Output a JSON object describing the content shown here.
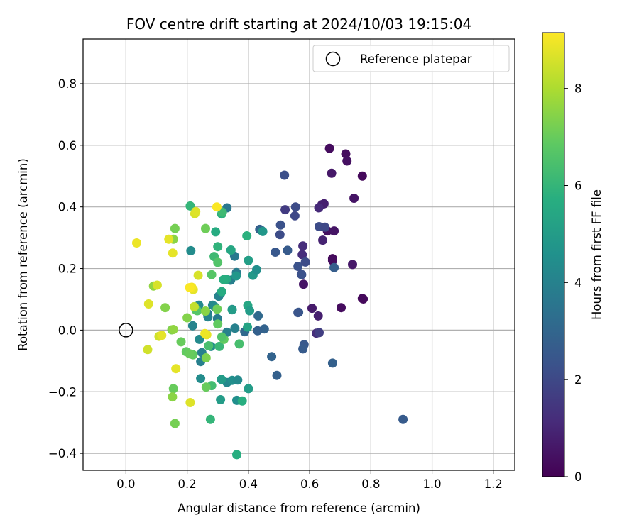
{
  "chart_data": {
    "type": "scatter",
    "title": "FOV centre drift starting at 2024/10/03 19:15:04",
    "xlabel": "Angular distance from reference (arcmin)",
    "ylabel": "Rotation from reference (arcmin)",
    "xlim": [
      -0.14,
      1.27
    ],
    "ylim": [
      -0.455,
      0.945
    ],
    "xticks": [
      0.0,
      0.2,
      0.4,
      0.6,
      0.8,
      1.0,
      1.2
    ],
    "xtick_labels": [
      "0.0",
      "0.2",
      "0.4",
      "0.6",
      "0.8",
      "1.0",
      "1.2"
    ],
    "yticks": [
      -0.4,
      -0.2,
      0.0,
      0.2,
      0.4,
      0.6,
      0.8
    ],
    "ytick_labels": [
      "−0.4",
      "−0.2",
      "0.0",
      "0.2",
      "0.4",
      "0.6",
      "0.8"
    ],
    "grid": true,
    "legend": {
      "position": "top-right",
      "entries": [
        {
          "label": "Reference platepar",
          "marker": "open-circle"
        }
      ]
    },
    "reference_point": {
      "x": 0.0,
      "y": 0.0
    },
    "colorbar": {
      "label": "Hours from first FF file",
      "colormap": "viridis",
      "range": [
        0,
        9.15
      ],
      "ticks": [
        0,
        2,
        4,
        6,
        8
      ],
      "tick_labels": [
        "0",
        "2",
        "4",
        "6",
        "8"
      ]
    },
    "points": [
      [
        0.665,
        0.59,
        0.3
      ],
      [
        0.718,
        0.572,
        0.3
      ],
      [
        0.722,
        0.549,
        0.4
      ],
      [
        0.672,
        0.509,
        0.6
      ],
      [
        0.772,
        0.5,
        0.2
      ],
      [
        0.745,
        0.428,
        0.5
      ],
      [
        0.64,
        0.407,
        0.9
      ],
      [
        0.647,
        0.41,
        0.8
      ],
      [
        0.63,
        0.397,
        1.1
      ],
      [
        0.658,
        0.322,
        0.4
      ],
      [
        0.68,
        0.322,
        0.5
      ],
      [
        0.643,
        0.292,
        0.9
      ],
      [
        0.675,
        0.232,
        0.2
      ],
      [
        0.675,
        0.226,
        0.3
      ],
      [
        0.74,
        0.213,
        0.6
      ],
      [
        0.772,
        0.103,
        0.2
      ],
      [
        0.775,
        0.101,
        0.2
      ],
      [
        0.703,
        0.073,
        0.3
      ],
      [
        0.608,
        0.071,
        0.7
      ],
      [
        0.628,
        0.046,
        0.8
      ],
      [
        0.58,
        0.149,
        0.5
      ],
      [
        0.578,
        0.273,
        1.2
      ],
      [
        0.576,
        0.245,
        1.2
      ],
      [
        0.622,
        -0.01,
        1.2
      ],
      [
        0.631,
        -0.008,
        1.7
      ],
      [
        0.518,
        0.503,
        2.2
      ],
      [
        0.52,
        0.391,
        1.6
      ],
      [
        0.554,
        0.4,
        2.1
      ],
      [
        0.552,
        0.371,
        2.0
      ],
      [
        0.505,
        0.341,
        2.3
      ],
      [
        0.503,
        0.31,
        2.1
      ],
      [
        0.528,
        0.259,
        2.6
      ],
      [
        0.488,
        0.253,
        2.5
      ],
      [
        0.631,
        0.336,
        2.1
      ],
      [
        0.65,
        0.334,
        2.0
      ],
      [
        0.562,
        0.207,
        2.3
      ],
      [
        0.586,
        0.221,
        2.1
      ],
      [
        0.573,
        0.181,
        2.0
      ],
      [
        0.574,
        0.18,
        2.3
      ],
      [
        0.68,
        0.203,
        2.7
      ],
      [
        0.564,
        0.058,
        2.6
      ],
      [
        0.562,
        0.057,
        2.4
      ],
      [
        0.582,
        -0.047,
        2.5
      ],
      [
        0.578,
        -0.061,
        2.6
      ],
      [
        0.675,
        -0.107,
        2.8
      ],
      [
        0.493,
        -0.147,
        2.8
      ],
      [
        0.476,
        -0.086,
        2.9
      ],
      [
        0.905,
        -0.29,
        2.6
      ],
      [
        0.452,
        0.004,
        2.9
      ],
      [
        0.43,
        -0.002,
        2.8
      ],
      [
        0.432,
        0.046,
        3.1
      ],
      [
        0.388,
        -0.005,
        3.1
      ],
      [
        0.437,
        0.327,
        2.8
      ],
      [
        0.442,
        0.324,
        3.0
      ],
      [
        0.33,
        0.397,
        3.6
      ],
      [
        0.355,
        0.24,
        3.7
      ],
      [
        0.361,
        0.187,
        3.8
      ],
      [
        0.342,
        0.162,
        3.9
      ],
      [
        0.31,
        0.12,
        4.4
      ],
      [
        0.303,
        0.11,
        4.0
      ],
      [
        0.299,
        0.037,
        3.8
      ],
      [
        0.347,
        0.067,
        4.1
      ],
      [
        0.356,
        0.006,
        4.0
      ],
      [
        0.33,
        -0.007,
        4.0
      ],
      [
        0.266,
        0.054,
        3.9
      ],
      [
        0.268,
        0.043,
        4.1
      ],
      [
        0.283,
        0.081,
        4.2
      ],
      [
        0.29,
        0.076,
        4.3
      ],
      [
        0.238,
        0.081,
        4.3
      ],
      [
        0.218,
        0.014,
        4.1
      ],
      [
        0.212,
        0.258,
        4.4
      ],
      [
        0.248,
        -0.073,
        3.9
      ],
      [
        0.244,
        -0.102,
        3.9
      ],
      [
        0.24,
        -0.03,
        4.3
      ],
      [
        0.33,
        -0.17,
        4.2
      ],
      [
        0.347,
        -0.163,
        4.5
      ],
      [
        0.365,
        -0.162,
        4.3
      ],
      [
        0.362,
        -0.228,
        4.5
      ],
      [
        0.244,
        -0.157,
        4.4
      ],
      [
        0.278,
        -0.053,
        4.4
      ],
      [
        0.36,
        0.176,
        4.8
      ],
      [
        0.415,
        0.178,
        4.9
      ],
      [
        0.427,
        0.196,
        4.5
      ],
      [
        0.447,
        0.32,
        4.8
      ],
      [
        0.4,
        0.226,
        5.1
      ],
      [
        0.309,
        -0.226,
        5.0
      ],
      [
        0.312,
        -0.16,
        5.0
      ],
      [
        0.4,
        -0.19,
        5.0
      ],
      [
        0.347,
        0.066,
        5.0
      ],
      [
        0.398,
        0.08,
        5.4
      ],
      [
        0.397,
        0.01,
        5.3
      ],
      [
        0.404,
        0.063,
        5.0
      ],
      [
        0.21,
        0.403,
        6.0
      ],
      [
        0.328,
        0.165,
        5.6
      ],
      [
        0.38,
        -0.23,
        5.7
      ],
      [
        0.362,
        -0.404,
        5.7
      ],
      [
        0.276,
        -0.29,
        6.0
      ],
      [
        0.28,
        -0.18,
        6.3
      ],
      [
        0.27,
        -0.051,
        6.4
      ],
      [
        0.305,
        -0.053,
        6.1
      ],
      [
        0.313,
        0.125,
        5.6
      ],
      [
        0.319,
        0.164,
        5.7
      ],
      [
        0.343,
        0.26,
        5.4
      ],
      [
        0.395,
        0.306,
        5.8
      ],
      [
        0.3,
        0.271,
        5.9
      ],
      [
        0.293,
        0.319,
        5.6
      ],
      [
        0.313,
        0.377,
        5.8
      ],
      [
        0.315,
        0.383,
        6.2
      ],
      [
        0.288,
        0.239,
        6.2
      ],
      [
        0.3,
        0.22,
        6.6
      ],
      [
        0.28,
        0.18,
        6.7
      ],
      [
        0.26,
        0.33,
        7.1
      ],
      [
        0.229,
        0.065,
        6.8
      ],
      [
        0.3,
        0.02,
        6.9
      ],
      [
        0.298,
        0.068,
        7.1
      ],
      [
        0.32,
        -0.03,
        6.9
      ],
      [
        0.313,
        -0.022,
        6.6
      ],
      [
        0.37,
        -0.045,
        6.4
      ],
      [
        0.262,
        -0.185,
        7.0
      ],
      [
        0.262,
        -0.09,
        7.3
      ],
      [
        0.233,
        0.063,
        6.7
      ],
      [
        0.26,
        0.062,
        7.5
      ],
      [
        0.18,
        -0.038,
        7.0
      ],
      [
        0.197,
        -0.07,
        6.9
      ],
      [
        0.219,
        -0.08,
        6.9
      ],
      [
        0.208,
        -0.077,
        7.0
      ],
      [
        0.15,
        0.001,
        7.3
      ],
      [
        0.155,
        0.002,
        7.6
      ],
      [
        0.128,
        0.073,
        7.4
      ],
      [
        0.16,
        0.33,
        7.2
      ],
      [
        0.155,
        0.295,
        7.5
      ],
      [
        0.155,
        -0.19,
        7.0
      ],
      [
        0.152,
        -0.217,
        7.5
      ],
      [
        0.16,
        -0.303,
        7.2
      ],
      [
        0.2,
        0.04,
        7.4
      ],
      [
        0.09,
        0.143,
        7.6
      ],
      [
        0.108,
        -0.02,
        8.5
      ],
      [
        0.117,
        -0.017,
        8.8
      ],
      [
        0.074,
        0.085,
        8.7
      ],
      [
        0.035,
        0.283,
        8.9
      ],
      [
        0.102,
        0.146,
        8.6
      ],
      [
        0.071,
        -0.063,
        8.5
      ],
      [
        0.163,
        -0.125,
        8.8
      ],
      [
        0.21,
        -0.235,
        8.7
      ],
      [
        0.264,
        -0.015,
        8.8
      ],
      [
        0.258,
        -0.011,
        8.9
      ],
      [
        0.236,
        0.178,
        8.6
      ],
      [
        0.225,
        0.378,
        8.6
      ],
      [
        0.22,
        0.132,
        8.8
      ],
      [
        0.215,
        0.139,
        9.0
      ],
      [
        0.208,
        0.138,
        9.1
      ],
      [
        0.223,
        0.076,
        8.3
      ],
      [
        0.14,
        0.295,
        8.8
      ],
      [
        0.153,
        0.25,
        8.8
      ],
      [
        0.297,
        0.4,
        9.1
      ],
      [
        0.228,
        0.385,
        8.7
      ]
    ]
  }
}
